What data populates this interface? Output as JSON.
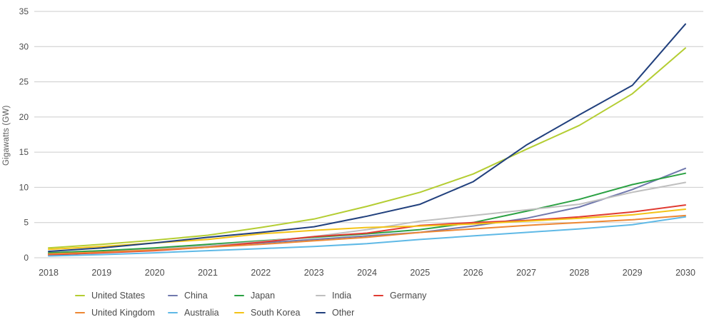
{
  "chart_data": {
    "type": "line",
    "title": "",
    "ylabel": "Gigawatts (GW)",
    "xlabel": "",
    "x": [
      2018,
      2019,
      2020,
      2021,
      2022,
      2023,
      2024,
      2025,
      2026,
      2027,
      2028,
      2029,
      2030
    ],
    "y_ticks": [
      0,
      5,
      10,
      15,
      20,
      25,
      30,
      35
    ],
    "ylim": [
      0,
      35
    ],
    "grid": "horizontal",
    "gridline_color": "#cccccc",
    "tick_label_color": "#4c4c4c",
    "legend_position": "bottom",
    "series": [
      {
        "name": "United States",
        "color": "#b4cd32",
        "values": [
          1.4,
          1.9,
          2.5,
          3.2,
          4.3,
          5.5,
          7.3,
          9.3,
          11.9,
          15.4,
          18.8,
          23.3,
          29.8
        ]
      },
      {
        "name": "China",
        "color": "#7078ad",
        "values": [
          0.6,
          0.9,
          1.3,
          1.7,
          2.1,
          2.6,
          3.1,
          3.6,
          4.5,
          5.6,
          7.2,
          9.7,
          12.7
        ]
      },
      {
        "name": "Japan",
        "color": "#2ba143",
        "values": [
          0.7,
          1.0,
          1.4,
          1.9,
          2.4,
          2.9,
          3.4,
          4.0,
          5.0,
          6.6,
          8.3,
          10.4,
          12.0
        ]
      },
      {
        "name": "India",
        "color": "#bfbfbf",
        "values": [
          0.5,
          0.8,
          1.2,
          1.7,
          2.3,
          3.0,
          4.0,
          5.2,
          6.0,
          6.8,
          7.6,
          9.3,
          10.7
        ]
      },
      {
        "name": "Germany",
        "color": "#e03b32",
        "values": [
          0.4,
          0.7,
          1.0,
          1.5,
          2.2,
          3.0,
          3.5,
          4.6,
          5.0,
          5.3,
          5.8,
          6.5,
          7.5
        ]
      },
      {
        "name": "United Kingdom",
        "color": "#ed8733",
        "values": [
          0.55,
          0.8,
          1.1,
          1.5,
          1.9,
          2.4,
          2.9,
          3.6,
          4.1,
          4.6,
          5.0,
          5.4,
          6.0
        ]
      },
      {
        "name": "Australia",
        "color": "#5fb9e6",
        "values": [
          0.25,
          0.45,
          0.7,
          1.0,
          1.3,
          1.6,
          2.0,
          2.6,
          3.1,
          3.6,
          4.1,
          4.7,
          5.8
        ]
      },
      {
        "name": "South Korea",
        "color": "#f3c317",
        "values": [
          1.2,
          1.6,
          2.1,
          2.6,
          3.4,
          3.9,
          4.3,
          4.5,
          4.8,
          5.2,
          5.6,
          6.1,
          6.9
        ]
      },
      {
        "name": "Other",
        "color": "#21407d",
        "values": [
          0.9,
          1.4,
          2.1,
          2.9,
          3.6,
          4.4,
          5.9,
          7.6,
          10.8,
          16.0,
          20.3,
          24.5,
          33.2
        ]
      }
    ]
  }
}
